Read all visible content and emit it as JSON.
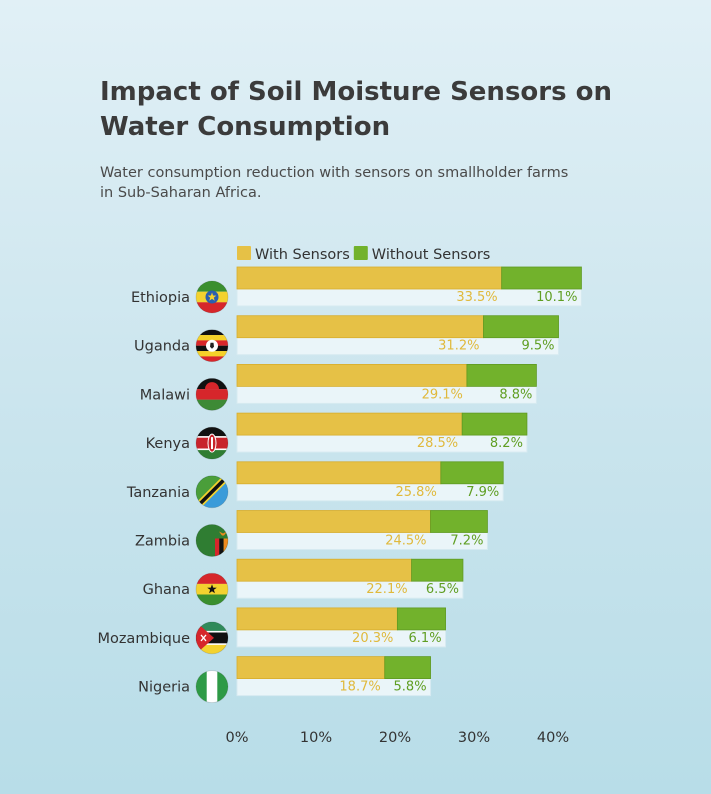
{
  "chart_data": {
    "type": "bar",
    "orientation": "horizontal",
    "stacked": true,
    "title": "Impact of Soil Moisture Sensors on Water Consumption",
    "subtitle": "Water consumption reduction with sensors on smallholder farms in Sub-Saharan Africa.",
    "categories": [
      "Ethiopia",
      "Uganda",
      "Malawi",
      "Kenya",
      "Tanzania",
      "Zambia",
      "Ghana",
      "Mozambique",
      "Nigeria"
    ],
    "series": [
      {
        "name": "With Sensors",
        "color": "#e6c146",
        "values": [
          33.5,
          31.2,
          29.1,
          28.5,
          25.8,
          24.5,
          22.1,
          20.3,
          18.7
        ]
      },
      {
        "name": "Without Sensors",
        "color": "#72b22c",
        "values": [
          10.1,
          9.5,
          8.8,
          8.2,
          7.9,
          7.2,
          6.5,
          6.1,
          5.8
        ]
      }
    ],
    "xlim": [
      0,
      45
    ],
    "ticks": [
      0,
      10,
      20,
      30,
      40
    ],
    "tick_labels": [
      "0%",
      "10%",
      "20%",
      "30%",
      "40%"
    ],
    "value_suffix": "%",
    "legend_placement": "top",
    "grid": false,
    "flag_icons": [
      "ethiopia-flag-icon",
      "uganda-flag-icon",
      "malawi-flag-icon",
      "kenya-flag-icon",
      "tanzania-flag-icon",
      "zambia-flag-icon",
      "ghana-flag-icon",
      "mozambique-flag-icon",
      "nigeria-flag-icon"
    ]
  }
}
